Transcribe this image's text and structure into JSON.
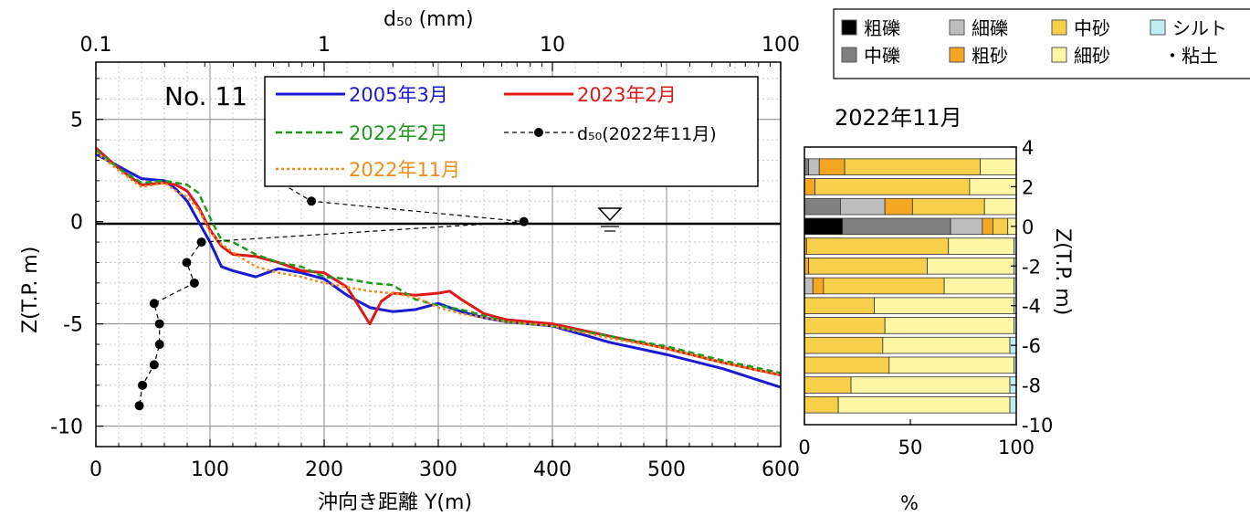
{
  "chart_data": [
    {
      "type": "line",
      "panel_label": "No. 11",
      "xlabel": "沖向き距離 Y(m)",
      "ylabel": "Z(T.P. m)",
      "top_axis_label": "d₅₀ (mm)",
      "top_axis_scale": "log",
      "top_axis_ticks": [
        "0.1",
        "1",
        "10",
        "100"
      ],
      "x_ticks": [
        "0",
        "100",
        "200",
        "300",
        "400",
        "500",
        "600"
      ],
      "y_ticks": [
        "5",
        "0",
        "-5",
        "-10"
      ],
      "xlim": [
        0,
        600
      ],
      "ylim": [
        -11,
        7.8
      ],
      "top_xlim_mm": [
        0.1,
        100
      ],
      "grid": true,
      "sea_level": 0,
      "legend_position": "top",
      "series": [
        {
          "name": "2005年3月",
          "color": "#1a1ad4",
          "dash": "solid",
          "x": [
            0,
            20,
            40,
            60,
            70,
            80,
            90,
            100,
            110,
            120,
            140,
            160,
            180,
            200,
            220,
            240,
            260,
            280,
            300,
            320,
            340,
            360,
            380,
            400,
            450,
            500,
            550,
            600
          ],
          "y": [
            3.3,
            2.7,
            2.1,
            2.0,
            1.6,
            1.0,
            0.0,
            -1.0,
            -2.2,
            -2.4,
            -2.7,
            -2.3,
            -2.5,
            -2.8,
            -3.6,
            -4.2,
            -4.4,
            -4.3,
            -4.0,
            -4.4,
            -4.7,
            -4.9,
            -5.0,
            -5.1,
            -5.9,
            -6.5,
            -7.2,
            -8.1
          ]
        },
        {
          "name": "2023年2月",
          "color": "#e01818",
          "dash": "solid",
          "x": [
            0,
            20,
            40,
            60,
            70,
            80,
            90,
            100,
            110,
            120,
            140,
            160,
            180,
            200,
            220,
            230,
            240,
            250,
            260,
            280,
            300,
            310,
            320,
            340,
            360,
            380,
            400,
            450,
            500,
            550,
            600
          ],
          "y": [
            3.6,
            2.6,
            1.8,
            1.9,
            1.8,
            1.5,
            0.7,
            -0.4,
            -1.2,
            -1.6,
            -1.7,
            -2.0,
            -2.4,
            -2.5,
            -3.2,
            -4.1,
            -5.0,
            -3.9,
            -3.5,
            -3.6,
            -3.5,
            -3.4,
            -3.8,
            -4.5,
            -4.8,
            -4.9,
            -5.0,
            -5.6,
            -6.2,
            -6.9,
            -7.5
          ]
        },
        {
          "name": "2022年2月",
          "color": "#1f9a1f",
          "dash": "dashed",
          "x": [
            0,
            20,
            40,
            60,
            70,
            80,
            90,
            100,
            110,
            120,
            140,
            160,
            180,
            200,
            220,
            240,
            260,
            280,
            300,
            320,
            340,
            360,
            380,
            400,
            450,
            500,
            550,
            600
          ],
          "y": [
            3.5,
            2.6,
            1.9,
            2.0,
            1.9,
            1.8,
            1.4,
            0.2,
            -0.9,
            -1.0,
            -1.6,
            -2.0,
            -2.2,
            -2.7,
            -2.8,
            -3.0,
            -3.1,
            -3.8,
            -4.1,
            -4.3,
            -4.6,
            -4.9,
            -5.0,
            -5.1,
            -5.6,
            -6.1,
            -6.8,
            -7.4
          ]
        },
        {
          "name": "2022年11月",
          "color": "#f08c1e",
          "dash": "dotted",
          "x": [
            0,
            20,
            40,
            60,
            70,
            80,
            90,
            100,
            110,
            120,
            140,
            160,
            180,
            200,
            220,
            240,
            260,
            280,
            300,
            320,
            340,
            360,
            380,
            400,
            450,
            500,
            550,
            600
          ],
          "y": [
            3.4,
            2.5,
            1.7,
            1.9,
            1.5,
            1.2,
            0.6,
            -0.5,
            -1.1,
            -1.5,
            -2.2,
            -2.5,
            -2.7,
            -3.0,
            -3.2,
            -3.4,
            -3.5,
            -3.7,
            -4.2,
            -4.5,
            -4.7,
            -4.9,
            -5.0,
            -5.1,
            -5.7,
            -6.2,
            -6.9,
            -7.5
          ]
        },
        {
          "name": "d₅₀(2022年11月)",
          "color": "#000000",
          "dash": "dashed",
          "marker": "circle",
          "x_units": "mm",
          "d50": [
            1.3,
            0.62,
            0.88,
            7.5,
            0.29,
            0.25,
            0.27,
            0.18,
            0.19,
            0.19,
            0.18,
            0.16,
            0.155
          ],
          "y": [
            3,
            2,
            1,
            0,
            -1,
            -2,
            -3,
            -4,
            -5,
            -6,
            -7,
            -8,
            -9
          ]
        }
      ]
    },
    {
      "type": "bar",
      "orientation": "horizontal",
      "stacked": true,
      "title": "2022年11月",
      "xlabel": "%",
      "ylabel": "Z(T.P. m)",
      "x_ticks": [
        "0",
        "50",
        "100"
      ],
      "y_ticks": [
        "4",
        "2",
        "0",
        "-2",
        "-4",
        "-6",
        "-8",
        "-10"
      ],
      "xlim": [
        0,
        100
      ],
      "ylim": [
        -10,
        4
      ],
      "legend_position": "top-right",
      "categories": [
        "3",
        "2",
        "1",
        "0",
        "-1",
        "-2",
        "-3",
        "-4",
        "-5",
        "-6",
        "-7",
        "-8",
        "-9"
      ],
      "series": [
        {
          "name": "粗礫",
          "color": "#000000",
          "values": [
            0,
            0,
            0,
            18,
            0,
            0,
            0,
            0,
            0,
            0,
            0,
            0,
            0
          ]
        },
        {
          "name": "中礫",
          "color": "#808080",
          "values": [
            2,
            0,
            17,
            51,
            0,
            0,
            0,
            0,
            0,
            0,
            0,
            0,
            0
          ]
        },
        {
          "name": "細礫",
          "color": "#bebebe",
          "values": [
            5,
            0,
            21,
            15,
            0,
            0,
            4,
            0,
            0,
            0,
            0,
            0,
            0
          ]
        },
        {
          "name": "粗砂",
          "color": "#f5a623",
          "values": [
            12,
            5,
            13,
            5,
            1,
            2,
            5,
            0,
            0,
            0,
            0,
            0,
            0
          ]
        },
        {
          "name": "中砂",
          "color": "#f7cf4a",
          "values": [
            64,
            73,
            34,
            7,
            67,
            56,
            57,
            33,
            38,
            37,
            40,
            22,
            16
          ]
        },
        {
          "name": "細砂",
          "color": "#fdf6a4",
          "values": [
            17,
            22,
            15,
            4,
            31,
            41,
            33,
            66,
            61,
            60,
            59,
            75,
            81
          ]
        },
        {
          "name": "シルト・粘土",
          "color": "#bfeff5",
          "values": [
            0,
            0,
            0,
            0,
            1,
            1,
            1,
            1,
            1,
            3,
            1,
            3,
            3
          ]
        }
      ]
    }
  ],
  "legend_labels": {
    "l2005": "2005年3月",
    "l2023": "2023年2月",
    "l2022_2": "2022年2月",
    "l2022_11": "2022年11月",
    "ld50": "d₅₀(2022年11月)"
  },
  "grain_legend": {
    "row1": [
      "粗礫",
      "細礫",
      "中砂",
      "シルト"
    ],
    "row2": [
      "中礫",
      "粗砂",
      "細砂",
      "・粘土"
    ]
  }
}
